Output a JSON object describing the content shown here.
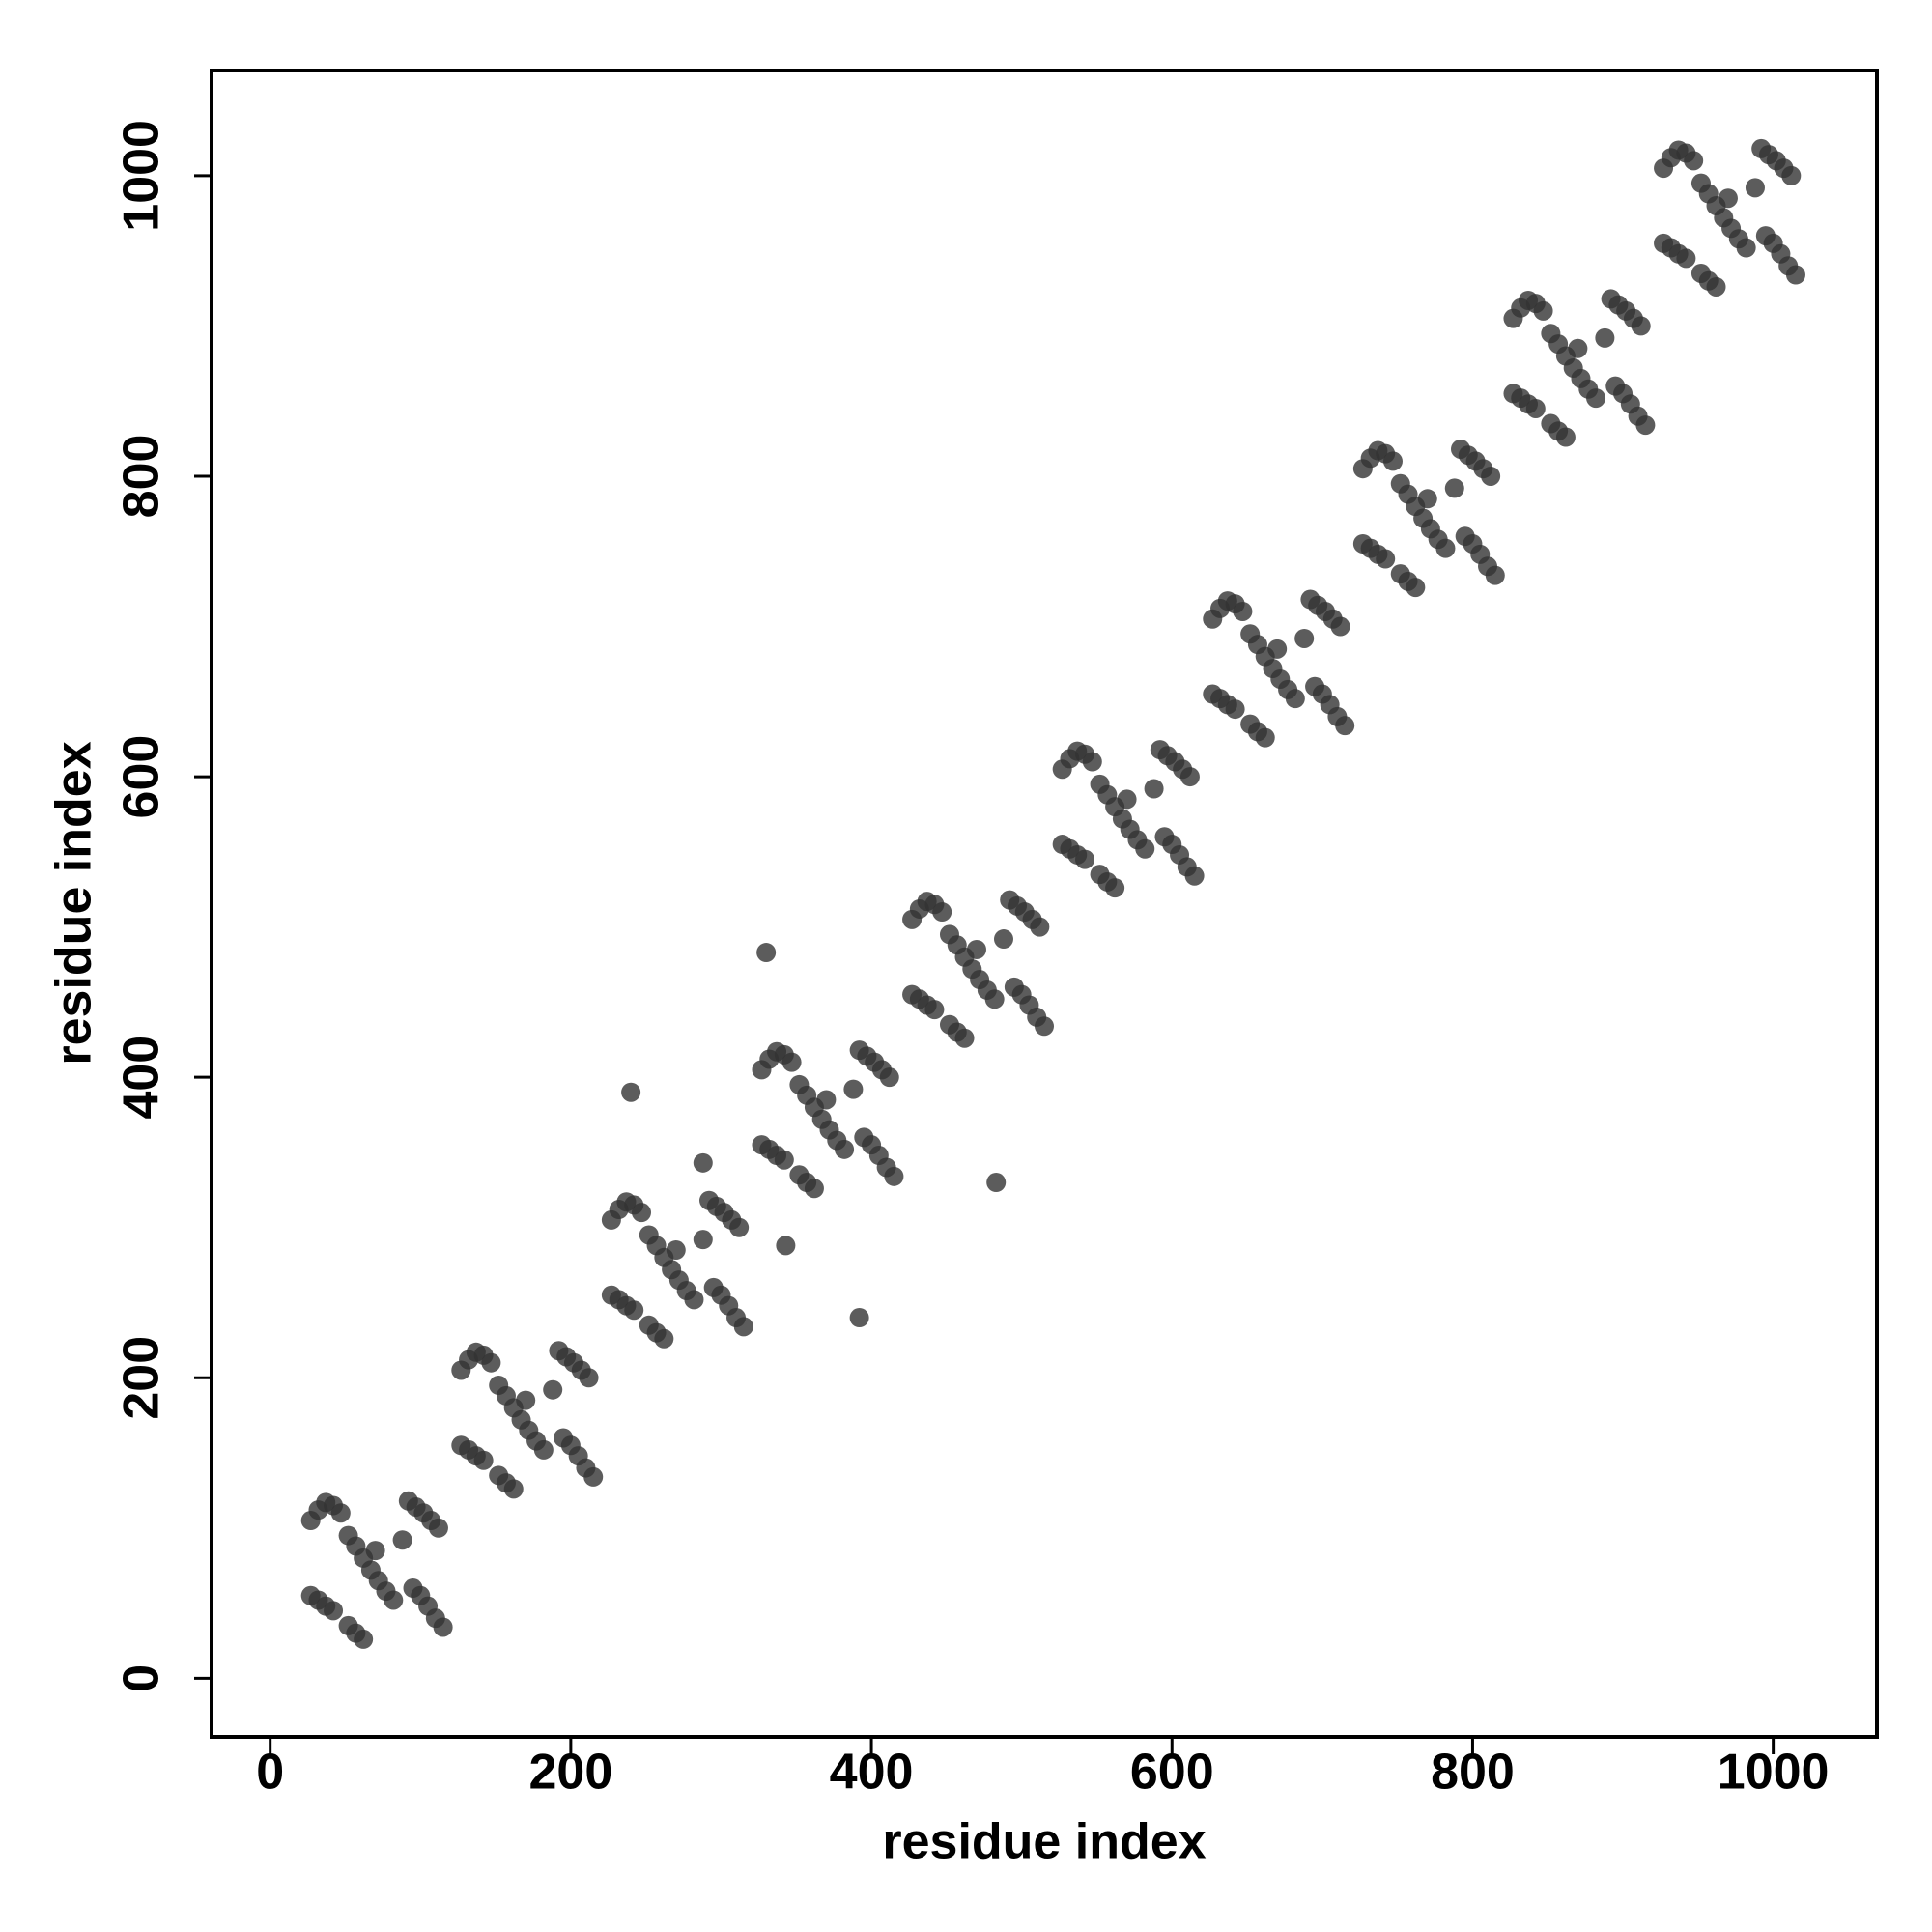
{
  "chart_data": {
    "type": "scatter",
    "xlabel": "residue index",
    "ylabel": "residue index",
    "xlim": [
      -39,
      1069
    ],
    "ylim": [
      -39,
      1070
    ],
    "xticks": [
      0,
      200,
      400,
      600,
      800,
      1000
    ],
    "yticks": [
      0,
      200,
      400,
      600,
      800,
      1000
    ],
    "color": "#333333",
    "x": [
      27,
      32,
      37,
      42,
      47,
      27,
      32,
      37,
      42,
      52,
      57,
      62,
      67,
      72,
      77,
      82,
      52,
      57,
      62,
      92,
      97,
      102,
      107,
      112,
      95,
      100,
      105,
      110,
      115,
      70,
      88,
      127,
      132,
      137,
      142,
      147,
      127,
      132,
      137,
      142,
      152,
      157,
      162,
      167,
      172,
      177,
      182,
      152,
      157,
      162,
      192,
      197,
      202,
      207,
      212,
      195,
      200,
      205,
      210,
      215,
      170,
      188,
      227,
      232,
      237,
      242,
      247,
      227,
      232,
      237,
      242,
      252,
      257,
      262,
      267,
      272,
      277,
      282,
      252,
      257,
      262,
      292,
      297,
      302,
      307,
      312,
      295,
      300,
      305,
      310,
      315,
      270,
      288,
      327,
      332,
      337,
      342,
      347,
      327,
      332,
      337,
      342,
      352,
      357,
      362,
      367,
      372,
      377,
      382,
      352,
      357,
      362,
      392,
      397,
      402,
      407,
      412,
      395,
      400,
      405,
      410,
      415,
      370,
      388,
      427,
      432,
      437,
      442,
      447,
      427,
      432,
      437,
      442,
      452,
      457,
      462,
      467,
      472,
      477,
      482,
      452,
      457,
      462,
      492,
      497,
      502,
      507,
      512,
      495,
      500,
      505,
      510,
      515,
      470,
      488,
      527,
      532,
      537,
      542,
      547,
      527,
      532,
      537,
      542,
      552,
      557,
      562,
      567,
      572,
      577,
      582,
      552,
      557,
      562,
      592,
      597,
      602,
      607,
      612,
      595,
      600,
      605,
      610,
      615,
      570,
      588,
      627,
      632,
      637,
      642,
      647,
      627,
      632,
      637,
      642,
      652,
      657,
      662,
      667,
      672,
      677,
      682,
      652,
      657,
      662,
      692,
      697,
      702,
      707,
      712,
      695,
      700,
      705,
      710,
      715,
      670,
      688,
      727,
      732,
      737,
      742,
      747,
      727,
      732,
      737,
      742,
      752,
      757,
      762,
      767,
      772,
      777,
      782,
      752,
      757,
      762,
      792,
      797,
      802,
      807,
      812,
      795,
      800,
      805,
      810,
      815,
      770,
      788,
      827,
      832,
      837,
      842,
      847,
      827,
      832,
      837,
      842,
      852,
      857,
      862,
      867,
      872,
      877,
      882,
      852,
      857,
      862,
      892,
      897,
      902,
      907,
      912,
      895,
      900,
      905,
      910,
      915,
      870,
      888,
      927,
      932,
      937,
      942,
      947,
      927,
      932,
      937,
      942,
      952,
      957,
      962,
      967,
      972,
      977,
      982,
      952,
      957,
      962,
      992,
      997,
      1002,
      1007,
      1012,
      995,
      1000,
      1005,
      1010,
      1015,
      970,
      988,
      240,
      330,
      288,
      343,
      392,
      483
    ],
    "values": [
      105,
      112,
      117,
      115,
      110,
      55,
      52,
      48,
      45,
      95,
      88,
      80,
      72,
      65,
      58,
      52,
      35,
      30,
      26,
      118,
      114,
      110,
      105,
      100,
      60,
      55,
      48,
      40,
      34,
      85,
      92,
      205,
      212,
      217,
      215,
      210,
      155,
      152,
      148,
      145,
      195,
      188,
      180,
      172,
      165,
      158,
      152,
      135,
      130,
      126,
      218,
      214,
      210,
      205,
      200,
      160,
      155,
      148,
      140,
      134,
      185,
      192,
      305,
      312,
      317,
      315,
      310,
      255,
      252,
      248,
      245,
      295,
      288,
      280,
      272,
      265,
      258,
      252,
      235,
      230,
      226,
      318,
      314,
      310,
      305,
      300,
      260,
      255,
      248,
      240,
      234,
      285,
      292,
      405,
      412,
      417,
      415,
      410,
      355,
      352,
      348,
      345,
      395,
      388,
      380,
      372,
      365,
      358,
      352,
      335,
      330,
      326,
      418,
      414,
      410,
      405,
      400,
      360,
      355,
      348,
      340,
      334,
      385,
      392,
      505,
      512,
      517,
      515,
      510,
      455,
      452,
      448,
      445,
      495,
      488,
      480,
      472,
      465,
      458,
      452,
      435,
      430,
      426,
      518,
      514,
      510,
      505,
      500,
      460,
      455,
      448,
      440,
      434,
      485,
      492,
      605,
      612,
      617,
      615,
      610,
      555,
      552,
      548,
      545,
      595,
      588,
      580,
      572,
      565,
      558,
      552,
      535,
      530,
      526,
      618,
      614,
      610,
      605,
      600,
      560,
      555,
      548,
      540,
      534,
      585,
      592,
      705,
      712,
      717,
      715,
      710,
      655,
      652,
      648,
      645,
      695,
      688,
      680,
      672,
      665,
      658,
      652,
      635,
      630,
      626,
      718,
      714,
      710,
      705,
      700,
      660,
      655,
      648,
      640,
      634,
      685,
      692,
      805,
      812,
      817,
      815,
      810,
      755,
      752,
      748,
      745,
      795,
      788,
      780,
      772,
      765,
      758,
      752,
      735,
      730,
      726,
      818,
      814,
      810,
      805,
      800,
      760,
      755,
      748,
      740,
      734,
      785,
      792,
      905,
      912,
      917,
      915,
      910,
      855,
      852,
      848,
      845,
      895,
      888,
      880,
      872,
      865,
      858,
      852,
      835,
      830,
      826,
      918,
      914,
      910,
      905,
      900,
      860,
      855,
      848,
      840,
      834,
      885,
      892,
      1005,
      1012,
      1017,
      1015,
      1010,
      955,
      952,
      948,
      945,
      995,
      988,
      980,
      972,
      965,
      958,
      952,
      935,
      930,
      926,
      1018,
      1014,
      1010,
      1005,
      1000,
      960,
      955,
      948,
      940,
      934,
      985,
      992,
      390,
      483,
      343,
      288,
      240,
      330
    ]
  }
}
